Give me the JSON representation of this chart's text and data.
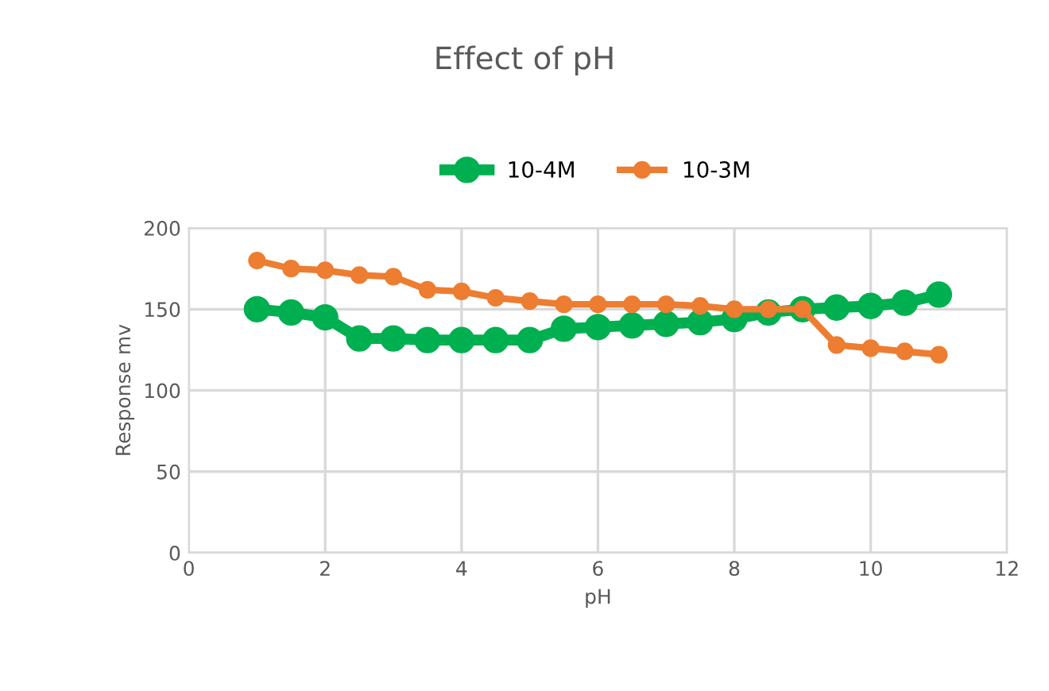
{
  "chart_data": {
    "type": "line",
    "title": "Effect of pH",
    "xlabel": "pH",
    "ylabel": "Response mv",
    "x": [
      1,
      1.5,
      2,
      2.5,
      3,
      3.5,
      4,
      4.5,
      5,
      5.5,
      6,
      6.5,
      7,
      7.5,
      8,
      8.5,
      9,
      9.5,
      10,
      10.5,
      11
    ],
    "series": [
      {
        "name": "10-4M",
        "color": "#00b050",
        "values": [
          150,
          148,
          145,
          132,
          132,
          131,
          131,
          131,
          131,
          138,
          139,
          140,
          141,
          142,
          144,
          148,
          150,
          151,
          152,
          154,
          159
        ]
      },
      {
        "name": "10-3M",
        "color": "#ed7d31",
        "values": [
          180,
          175,
          174,
          171,
          170,
          162,
          161,
          157,
          155,
          153,
          153,
          153,
          153,
          152,
          150,
          150,
          150,
          128,
          126,
          124,
          122
        ]
      }
    ],
    "xlim": [
      0,
      12
    ],
    "xticks": [
      0,
      2,
      4,
      6,
      8,
      10,
      12
    ],
    "ylim": [
      0,
      200
    ],
    "yticks": [
      0,
      50,
      100,
      150,
      200
    ],
    "grid": true,
    "legend": "top",
    "marker": "circle",
    "line_style": "solid"
  }
}
